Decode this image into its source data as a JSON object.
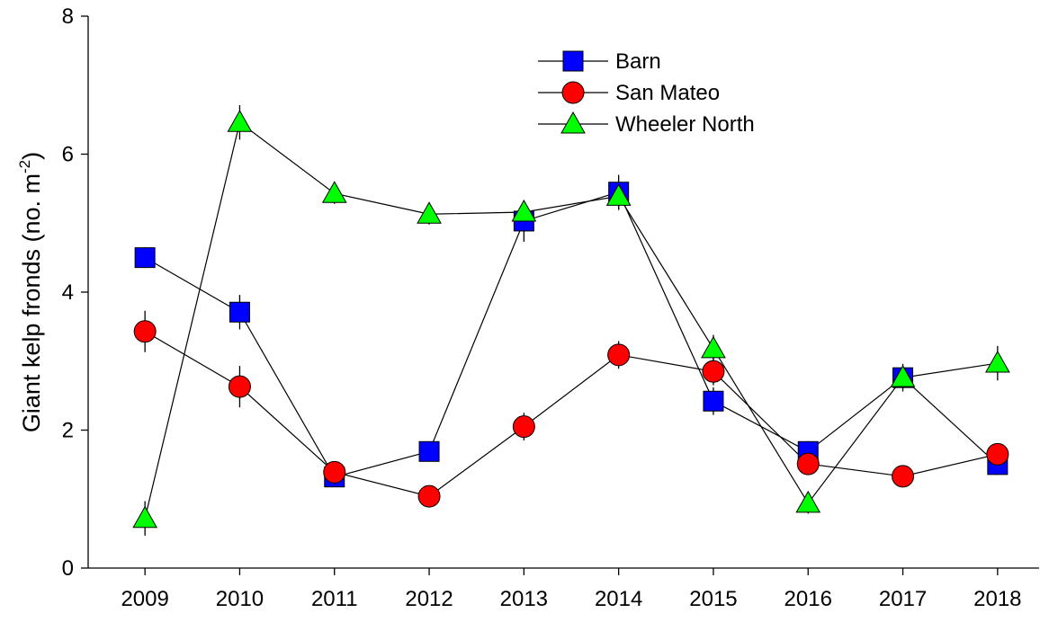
{
  "chart_data": {
    "type": "line",
    "ylabel": {
      "text": "Giant kelp fronds (no. m",
      "superscript": "-2",
      "suffix": ")"
    },
    "categories": [
      "2009",
      "2010",
      "2011",
      "2012",
      "2013",
      "2014",
      "2015",
      "2016",
      "2017",
      "2018"
    ],
    "series": [
      {
        "name": "Barn",
        "color": "#0000ff",
        "marker": "square",
        "values": [
          4.5,
          3.71,
          1.32,
          1.69,
          5.03,
          5.45,
          2.42,
          1.69,
          2.76,
          1.5
        ],
        "errors": [
          0.15,
          0.25,
          0.1,
          0.1,
          0.3,
          0.25,
          0.2,
          0.15,
          0.15,
          0.15
        ]
      },
      {
        "name": "San Mateo",
        "color": "#ff0000",
        "marker": "circle",
        "values": [
          3.43,
          2.63,
          1.39,
          1.04,
          2.05,
          3.09,
          2.85,
          1.51,
          1.33,
          1.65
        ],
        "errors": [
          0.3,
          0.3,
          0.1,
          0.15,
          0.2,
          0.2,
          0.2,
          0.15,
          0.1,
          0.15
        ]
      },
      {
        "name": "Wheeler North",
        "color": "#00ff00",
        "marker": "triangle",
        "values": [
          0.72,
          6.46,
          5.43,
          5.13,
          5.16,
          5.39,
          3.18,
          0.94,
          2.76,
          2.97
        ],
        "errors": [
          0.25,
          0.25,
          0.15,
          0.15,
          0.15,
          0.2,
          0.2,
          0.15,
          0.2,
          0.25
        ]
      }
    ],
    "ylim": [
      0,
      8
    ],
    "yticks": [
      0,
      2,
      4,
      6,
      8
    ],
    "legend": "upper center"
  }
}
